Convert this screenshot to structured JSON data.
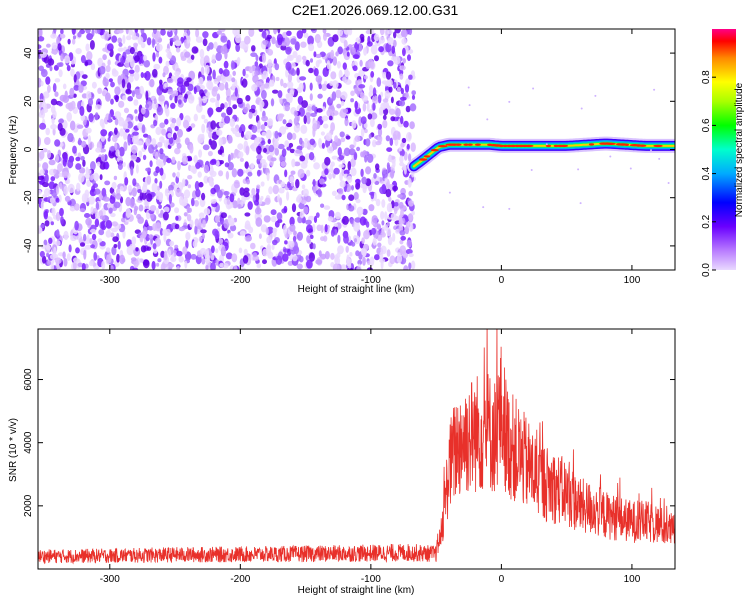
{
  "figure": {
    "title": "C2E1.2026.069.12.00.G31"
  },
  "colors": {
    "snr_line": "#e8302a",
    "background_noise": "#8a2be2",
    "frame": "#000000"
  },
  "chart_data": [
    {
      "type": "heatmap",
      "xlabel": "Height of straight line (km)",
      "ylabel": "Frequency (Hz)",
      "xlim": [
        -355,
        133
      ],
      "ylim": [
        -50,
        50
      ],
      "xticks": [
        -300,
        -200,
        -100,
        0,
        100
      ],
      "xtick_labels": [
        "-300",
        "-200",
        "-100",
        "0",
        "100"
      ],
      "yticks": [
        -40,
        -20,
        0,
        20,
        40
      ],
      "ytick_labels": [
        "-40",
        "-20",
        "0",
        "20",
        "40"
      ],
      "grid": false,
      "noise_region_x": [
        -355,
        -67
      ],
      "signal_ridge": {
        "x": [
          -67,
          -62,
          -55,
          -48,
          -40,
          -30,
          -20,
          -10,
          0,
          20,
          50,
          80,
          95,
          110,
          133
        ],
        "y": [
          -7,
          -5,
          -2,
          1,
          2,
          2,
          2,
          2,
          1.5,
          1.5,
          1.5,
          2.5,
          2,
          1.5,
          1.5
        ]
      },
      "colorbar": {
        "label": "Normalized spectral amplitude",
        "range": [
          0,
          1
        ],
        "ticks": [
          0.0,
          0.2,
          0.4,
          0.6,
          0.8
        ],
        "tick_labels": [
          "0.0",
          "0.2",
          "0.4",
          "0.6",
          "0.8"
        ]
      }
    },
    {
      "type": "line",
      "xlabel": "Height of straight line (km)",
      "ylabel": "SNR (10 * v/v)",
      "xlim": [
        -355,
        133
      ],
      "ylim": [
        0,
        7600
      ],
      "xticks": [
        -300,
        -200,
        -100,
        0,
        100
      ],
      "xtick_labels": [
        "-300",
        "-200",
        "-100",
        "0",
        "100"
      ],
      "yticks": [
        2000,
        4000,
        6000
      ],
      "ytick_labels": [
        "2000",
        "4000",
        "6000"
      ],
      "grid": false,
      "series": [
        {
          "x": [
            -355,
            -300,
            -250,
            -200,
            -150,
            -100,
            -70,
            -50,
            -45,
            -40,
            -35,
            -30,
            -20,
            -10,
            -5,
            0,
            5,
            10,
            20,
            30,
            40,
            50,
            60,
            70,
            80,
            90,
            100,
            110,
            120,
            133
          ],
          "values": [
            400,
            420,
            450,
            460,
            480,
            500,
            520,
            480,
            1500,
            3200,
            3800,
            4100,
            4300,
            4400,
            4200,
            5000,
            4000,
            3800,
            3300,
            2800,
            2600,
            2400,
            2000,
            1900,
            1700,
            1600,
            1500,
            1500,
            1400,
            1200
          ]
        }
      ]
    }
  ]
}
